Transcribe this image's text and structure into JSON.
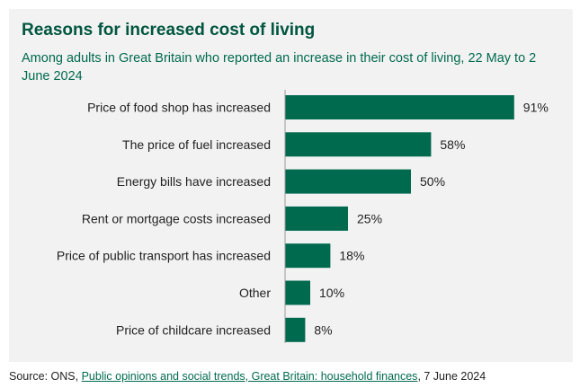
{
  "colors": {
    "bar": "#006a4e",
    "title": "#00563f",
    "panel": "#f2f2f2",
    "axis": "#999999"
  },
  "chart_data": {
    "type": "bar",
    "orientation": "horizontal",
    "title": "Reasons for increased cost of living",
    "subtitle": "Among adults in Great Britain who reported an increase in their cost of living, 22 May to 2 June 2024",
    "categories": [
      "Price of food shop has increased",
      "The price of fuel increased",
      "Energy bills have increased",
      "Rent or mortgage costs increased",
      "Price of public transport has increased",
      "Other",
      "Price of childcare increased"
    ],
    "values": [
      91,
      58,
      50,
      25,
      18,
      10,
      8
    ],
    "value_labels": [
      "91%",
      "58%",
      "50%",
      "25%",
      "18%",
      "10%",
      "8%"
    ],
    "unit": "%",
    "xlim": [
      0,
      100
    ],
    "grid": false,
    "legend": "none"
  },
  "source": {
    "prefix": "Source: ONS, ",
    "link_text": "Public opinions and social trends, Great Britain: household finances",
    "suffix": ", 7 June 2024"
  }
}
